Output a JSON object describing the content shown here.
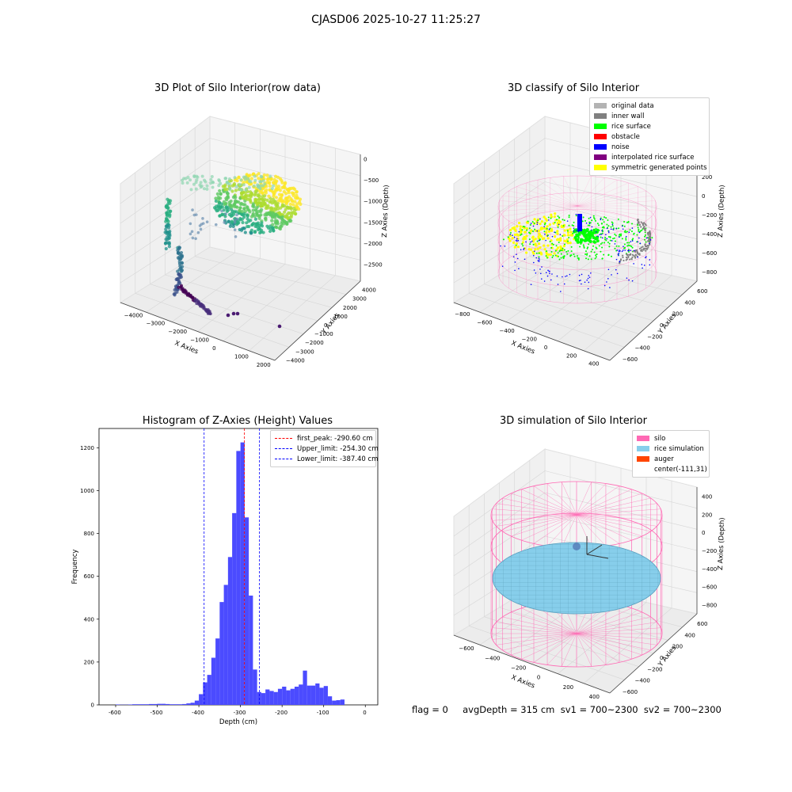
{
  "suptitle": "CJASD06 2025-10-27 11:25:27",
  "colors": {
    "hist_bar": "#4b4bff",
    "peak_line": "#ff0000",
    "limit_line": "#0000ff",
    "silo": "#ff69b4",
    "rice": "#87ceeb",
    "auger": "#ff4500"
  },
  "chart_data": [
    {
      "type": "scatter",
      "subtype": "3d",
      "title": "3D Plot of Silo Interior(row data)",
      "xlabel": "X Axies",
      "ylabel": "Y Axies",
      "zlabel": "Z Axies (Depth)",
      "xticks": [
        "−4000",
        "−3000",
        "−2000",
        "−1000",
        "0",
        "1000",
        "2000"
      ],
      "yticks": [
        "4000",
        "3000",
        "2000",
        "1000",
        "0",
        "−1000",
        "−2000",
        "−3000",
        "−4000"
      ],
      "zticks": [
        "0",
        "−500",
        "−1000",
        "−1500",
        "−2000",
        "−2500"
      ],
      "colormap": "viridis"
    },
    {
      "type": "scatter",
      "subtype": "3d",
      "title": "3D classify of Silo Interior",
      "xlabel": "X Axies",
      "ylabel": "Y Axies",
      "zlabel": "Z Axies (Depth)",
      "xticks": [
        "−800",
        "−600",
        "−400",
        "−200",
        "0",
        "200",
        "400"
      ],
      "yticks": [
        "600",
        "400",
        "200",
        "0",
        "−200",
        "−400",
        "−600"
      ],
      "zticks": [
        "200",
        "0",
        "−200",
        "−400",
        "−600",
        "−800"
      ],
      "ztop_tick": "0",
      "legend": [
        {
          "label": "original data",
          "color": "#b3b3b3"
        },
        {
          "label": "inner wall",
          "color": "#808080"
        },
        {
          "label": "rice surface",
          "color": "#00ff00"
        },
        {
          "label": "obstacle",
          "color": "#ff0000"
        },
        {
          "label": "noise",
          "color": "#0000ff"
        },
        {
          "label": "interpolated rice surface",
          "color": "#800080"
        },
        {
          "label": "symmetric generated points",
          "color": "#ffff00"
        }
      ]
    },
    {
      "type": "bar",
      "subtype": "histogram",
      "title": "Histogram of Z-Axies (Height) Values",
      "xlabel": "Depth (cm)",
      "ylabel": "Frequency",
      "xlim": [
        -640,
        30
      ],
      "ylim": [
        0,
        1290
      ],
      "xticks": [
        -600,
        -500,
        -400,
        -300,
        -200,
        -100,
        0
      ],
      "yticks": [
        0,
        200,
        400,
        600,
        800,
        1000,
        1200
      ],
      "bin_width": 10,
      "bins": [
        [
          -600,
          2
        ],
        [
          -590,
          1
        ],
        [
          -580,
          1
        ],
        [
          -570,
          2
        ],
        [
          -560,
          3
        ],
        [
          -550,
          3
        ],
        [
          -540,
          3
        ],
        [
          -530,
          3
        ],
        [
          -520,
          4
        ],
        [
          -510,
          4
        ],
        [
          -500,
          5
        ],
        [
          -490,
          5
        ],
        [
          -480,
          4
        ],
        [
          -470,
          3
        ],
        [
          -460,
          3
        ],
        [
          -450,
          3
        ],
        [
          -440,
          4
        ],
        [
          -430,
          7
        ],
        [
          -420,
          10
        ],
        [
          -410,
          20
        ],
        [
          -400,
          50
        ],
        [
          -390,
          105
        ],
        [
          -380,
          140
        ],
        [
          -370,
          220
        ],
        [
          -360,
          310
        ],
        [
          -350,
          480
        ],
        [
          -340,
          560
        ],
        [
          -330,
          690
        ],
        [
          -320,
          895
        ],
        [
          -310,
          1185
        ],
        [
          -300,
          1225
        ],
        [
          -290,
          875
        ],
        [
          -280,
          510
        ],
        [
          -270,
          165
        ],
        [
          -260,
          60
        ],
        [
          -250,
          55
        ],
        [
          -240,
          72
        ],
        [
          -230,
          65
        ],
        [
          -220,
          60
        ],
        [
          -210,
          75
        ],
        [
          -200,
          85
        ],
        [
          -190,
          68
        ],
        [
          -180,
          75
        ],
        [
          -170,
          85
        ],
        [
          -160,
          95
        ],
        [
          -150,
          160
        ],
        [
          -140,
          90
        ],
        [
          -130,
          90
        ],
        [
          -120,
          100
        ],
        [
          -110,
          80
        ],
        [
          -100,
          88
        ],
        [
          -90,
          40
        ],
        [
          -80,
          20
        ],
        [
          -70,
          22
        ],
        [
          -60,
          25
        ]
      ],
      "lines": [
        {
          "label": "first_peak: -290.60 cm",
          "x": -290.6,
          "color": "#ff0000"
        },
        {
          "label": "Upper_limit: -254.30 cm",
          "x": -254.3,
          "color": "#0000ff"
        },
        {
          "label": "Lower_limit: -387.40 cm",
          "x": -387.4,
          "color": "#0000ff"
        }
      ]
    },
    {
      "type": "area",
      "subtype": "3d",
      "title": "3D simulation of Silo Interior",
      "xlabel": "X Axies",
      "ylabel": "Y Axies",
      "zlabel": "Z Axies (Depth)",
      "xticks": [
        "−600",
        "−400",
        "−200",
        "0",
        "200",
        "400"
      ],
      "yticks": [
        "600",
        "400",
        "200",
        "0",
        "−200",
        "−400",
        "−600"
      ],
      "zticks": [
        "400",
        "200",
        "0",
        "−200",
        "−400",
        "−600",
        "−800"
      ],
      "legend": [
        {
          "label": "silo",
          "color": "#ff69b4"
        },
        {
          "label": "rice simulation",
          "color": "#87ceeb"
        },
        {
          "label": "auger",
          "color": "#ff4500"
        },
        {
          "label": "center(-111,31)",
          "color": ""
        }
      ]
    }
  ],
  "footer": "flag = 0     avgDepth = 315 cm  sv1 = 700~2300  sv2 = 700~2300"
}
